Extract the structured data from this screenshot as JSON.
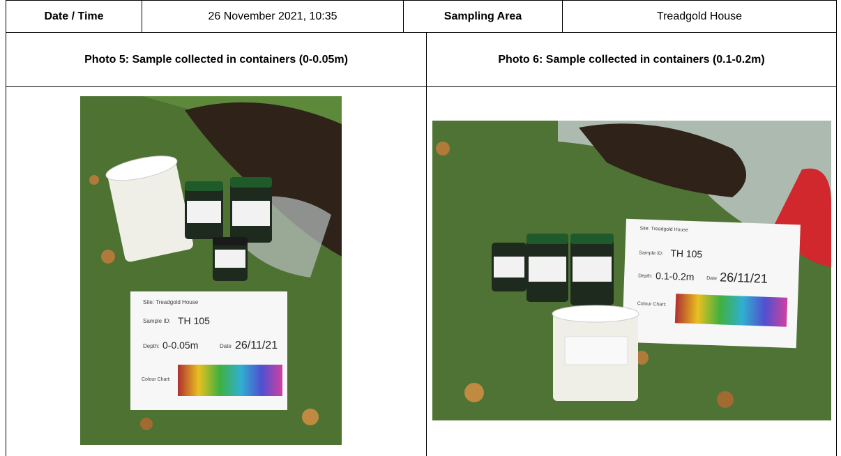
{
  "header": {
    "date_label": "Date / Time",
    "date_value": "26 November 2021, 10:35",
    "area_label": "Sampling Area",
    "area_value": "Treadgold House"
  },
  "photos": [
    {
      "caption": "Photo 5: Sample collected in containers (0-0.05m)",
      "card": {
        "site": "Site: Treadgold House",
        "sample_id_label": "Sample ID:",
        "sample_id": "TH 105",
        "depth_label": "Depth:",
        "depth": "0-0.05m",
        "date_label": "Date",
        "date": "26/11/21",
        "chart_label": "Colour Chart:"
      }
    },
    {
      "caption": "Photo 6: Sample collected in containers (0.1-0.2m)",
      "card": {
        "site": "Site: Treadgold House",
        "sample_id_label": "Sample ID:",
        "sample_id": "TH 105",
        "depth_label": "Depth:",
        "depth": "0.1-0.2m",
        "date_label": "Date",
        "date": "26/11/21",
        "chart_label": "Colour Chart:"
      }
    }
  ]
}
